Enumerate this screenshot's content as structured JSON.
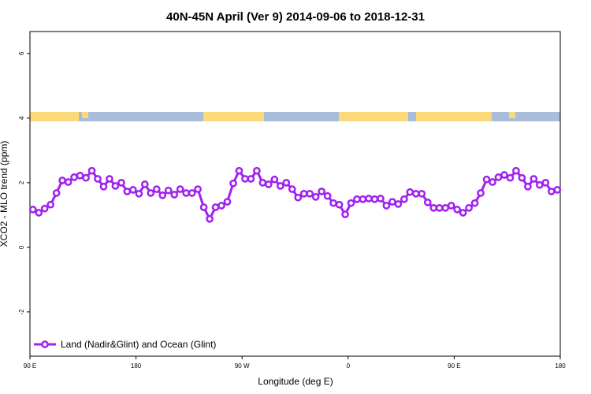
{
  "chart_data": {
    "type": "line",
    "title": "40N-45N April (Ver 9)   2014-09-06 to 2018-12-31",
    "x_label": "Longitude (deg E)",
    "y_label": "XCO2 - MLO trend (ppm)",
    "x": [
      92.5,
      97.5,
      102.5,
      107.5,
      112.5,
      117.5,
      122.5,
      127.5,
      132.5,
      137.5,
      142.5,
      147.5,
      152.5,
      157.5,
      162.5,
      167.5,
      172.5,
      177.5,
      182.5,
      187.5,
      192.5,
      197.5,
      202.5,
      207.5,
      212.5,
      217.5,
      222.5,
      227.5,
      232.5,
      237.5,
      242.5,
      247.5,
      252.5,
      257.5,
      262.5,
      267.5,
      272.5,
      277.5,
      282.5,
      287.5,
      292.5,
      297.5,
      302.5,
      307.5,
      312.5,
      317.5,
      322.5,
      327.5,
      332.5,
      337.5,
      342.5,
      347.5,
      352.5,
      357.5,
      362.5,
      367.5,
      372.5,
      377.5,
      382.5,
      387.5,
      392.5,
      397.5,
      402.5,
      407.5,
      412.5,
      417.5,
      422.5,
      427.5,
      432.5,
      437.5,
      442.5,
      447.5,
      452.5,
      457.5,
      462.5,
      467.5,
      472.5,
      477.5,
      482.5,
      487.5,
      492.5,
      497.5,
      502.5,
      507.5,
      512.5,
      517.5,
      522.5,
      527.5,
      532.5,
      537.5
    ],
    "series": [
      {
        "name": "Land (Nadir&Glint) and Ocean (Glint)",
        "color": "#a020f0",
        "values": [
          1.17,
          1.07,
          1.2,
          1.32,
          1.68,
          2.07,
          2.02,
          2.17,
          2.22,
          2.15,
          2.37,
          2.12,
          1.88,
          2.12,
          1.9,
          2.0,
          1.73,
          1.78,
          1.66,
          1.95,
          1.68,
          1.8,
          1.61,
          1.76,
          1.63,
          1.8,
          1.68,
          1.68,
          1.8,
          1.24,
          0.88,
          1.24,
          1.29,
          1.41,
          1.98,
          2.37,
          2.12,
          2.12,
          2.37,
          2.0,
          1.95,
          2.1,
          1.9,
          2.0,
          1.8,
          1.54,
          1.66,
          1.66,
          1.56,
          1.73,
          1.59,
          1.37,
          1.32,
          1.02,
          1.37,
          1.49,
          1.49,
          1.51,
          1.49,
          1.51,
          1.29,
          1.41,
          1.34,
          1.49,
          1.71,
          1.66,
          1.66,
          1.39,
          1.22,
          1.22,
          1.22,
          1.29,
          1.17,
          1.07,
          1.22,
          1.37,
          1.68,
          2.1,
          2.02,
          2.17,
          2.24,
          2.15,
          2.37,
          2.15,
          1.88,
          2.12,
          1.93,
          2.0,
          1.73,
          1.78
        ]
      }
    ],
    "xlim": [
      90,
      540
    ],
    "xticks": [
      {
        "value": 90,
        "label": "90 E"
      },
      180,
      {
        "value": 270,
        "label": "90 W"
      },
      {
        "value": 360,
        "label": "0"
      },
      {
        "value": 450,
        "label": "90 E"
      },
      {
        "value": 540,
        "label": "180"
      }
    ],
    "ylim": [
      -3.37,
      6.68
    ],
    "yticks": [
      -2,
      0,
      2,
      4,
      6
    ],
    "legend": "bottom-left"
  }
}
